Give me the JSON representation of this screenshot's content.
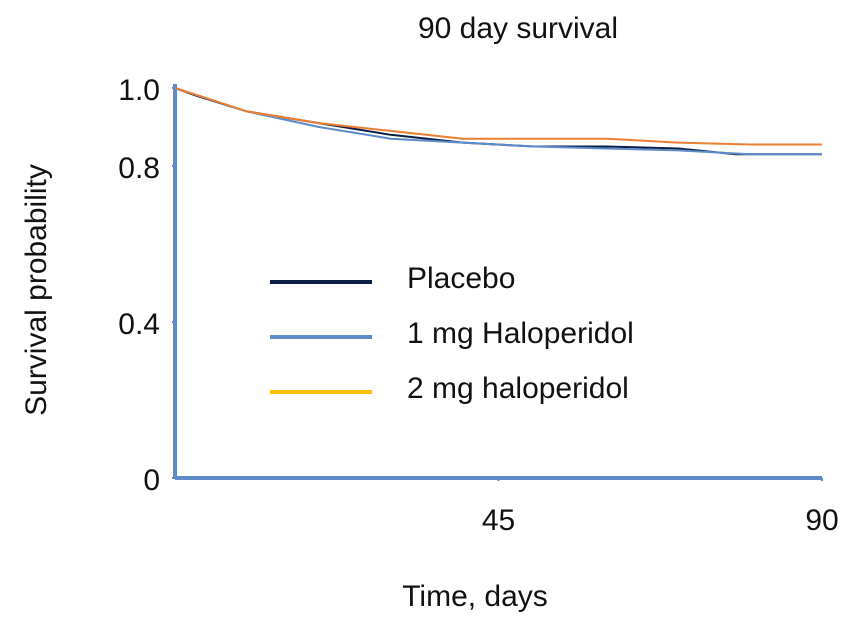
{
  "chart_data": {
    "type": "line",
    "title": "90 day survival",
    "x_label": "Time, days",
    "y_label": "Survival probability",
    "xlim": [
      0,
      90
    ],
    "xticks": [
      45,
      90
    ],
    "ylim": [
      0,
      1
    ],
    "yticks": [
      0,
      0.4,
      0.8,
      {
        "value": 1,
        "label": "1.0"
      }
    ],
    "axis_color": "#5b8bc9",
    "series": [
      {
        "name": "Placebo",
        "color": "#0b1f45",
        "x": [
          0,
          3,
          10,
          20,
          30,
          40,
          50,
          60,
          70,
          78,
          90
        ],
        "values": [
          1,
          0.98,
          0.94,
          0.91,
          0.88,
          0.86,
          0.85,
          0.85,
          0.845,
          0.83,
          0.83
        ]
      },
      {
        "name": "1 mg Haloperidol",
        "color": "#5b8bc9",
        "x": [
          0,
          5,
          10,
          20,
          30,
          40,
          50,
          60,
          70,
          80,
          90
        ],
        "values": [
          1,
          0.97,
          0.94,
          0.9,
          0.87,
          0.86,
          0.85,
          0.845,
          0.84,
          0.83,
          0.83
        ]
      },
      {
        "name": "2 mg haloperidol",
        "color": "#ed7d31",
        "legend_color": "#ffc000",
        "x": [
          0,
          5,
          10,
          20,
          30,
          40,
          50,
          60,
          65,
          70,
          80,
          90
        ],
        "values": [
          1,
          0.97,
          0.94,
          0.91,
          0.89,
          0.87,
          0.87,
          0.87,
          0.865,
          0.86,
          0.855,
          0.855
        ]
      }
    ]
  }
}
